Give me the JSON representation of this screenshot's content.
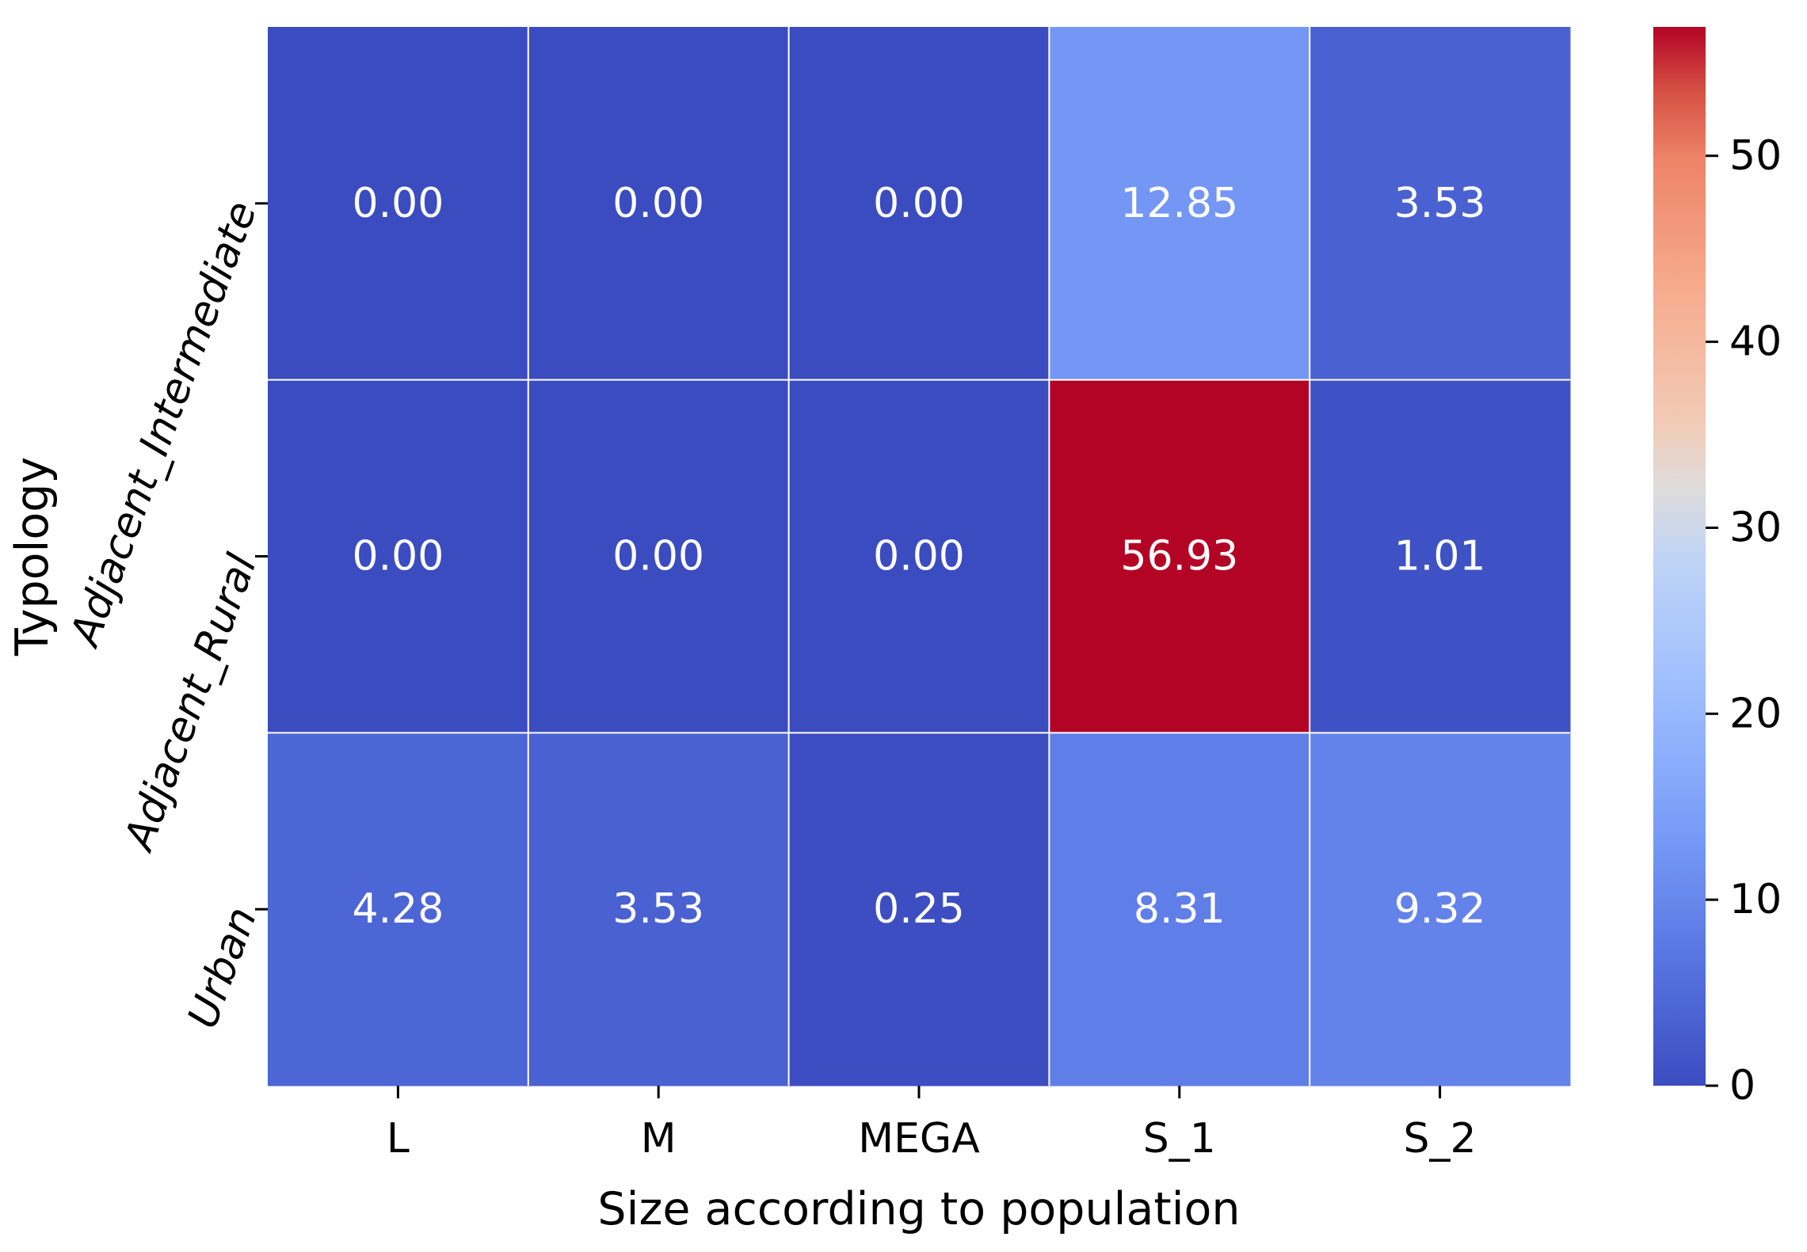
{
  "chart_data": {
    "type": "heatmap",
    "title": "",
    "xlabel": "Size according to population",
    "ylabel": "Typology",
    "x_categories": [
      "L",
      "M",
      "MEGA",
      "S_1",
      "S_2"
    ],
    "y_categories": [
      "Adjacent_Intermediate",
      "Adjacent_Rural",
      "Urban"
    ],
    "values": [
      [
        0.0,
        0.0,
        0.0,
        12.85,
        3.53
      ],
      [
        0.0,
        0.0,
        0.0,
        56.93,
        1.01
      ],
      [
        4.28,
        3.53,
        0.25,
        8.31,
        9.32
      ]
    ],
    "value_labels": [
      [
        "0.00",
        "0.00",
        "0.00",
        "12.85",
        "3.53"
      ],
      [
        "0.00",
        "0.00",
        "0.00",
        "56.93",
        "1.01"
      ],
      [
        "4.28",
        "3.53",
        "0.25",
        "8.31",
        "9.32"
      ]
    ],
    "colormap": "coolwarm",
    "vmin": 0,
    "vmax": 56.93,
    "colorbar_ticks": [
      0,
      10,
      20,
      30,
      40,
      50
    ],
    "colorbar_tick_labels": [
      "0",
      "10",
      "20",
      "30",
      "40",
      "50"
    ],
    "cell_text_color": "#ffffff",
    "grid_line_color": "#ffffff"
  }
}
